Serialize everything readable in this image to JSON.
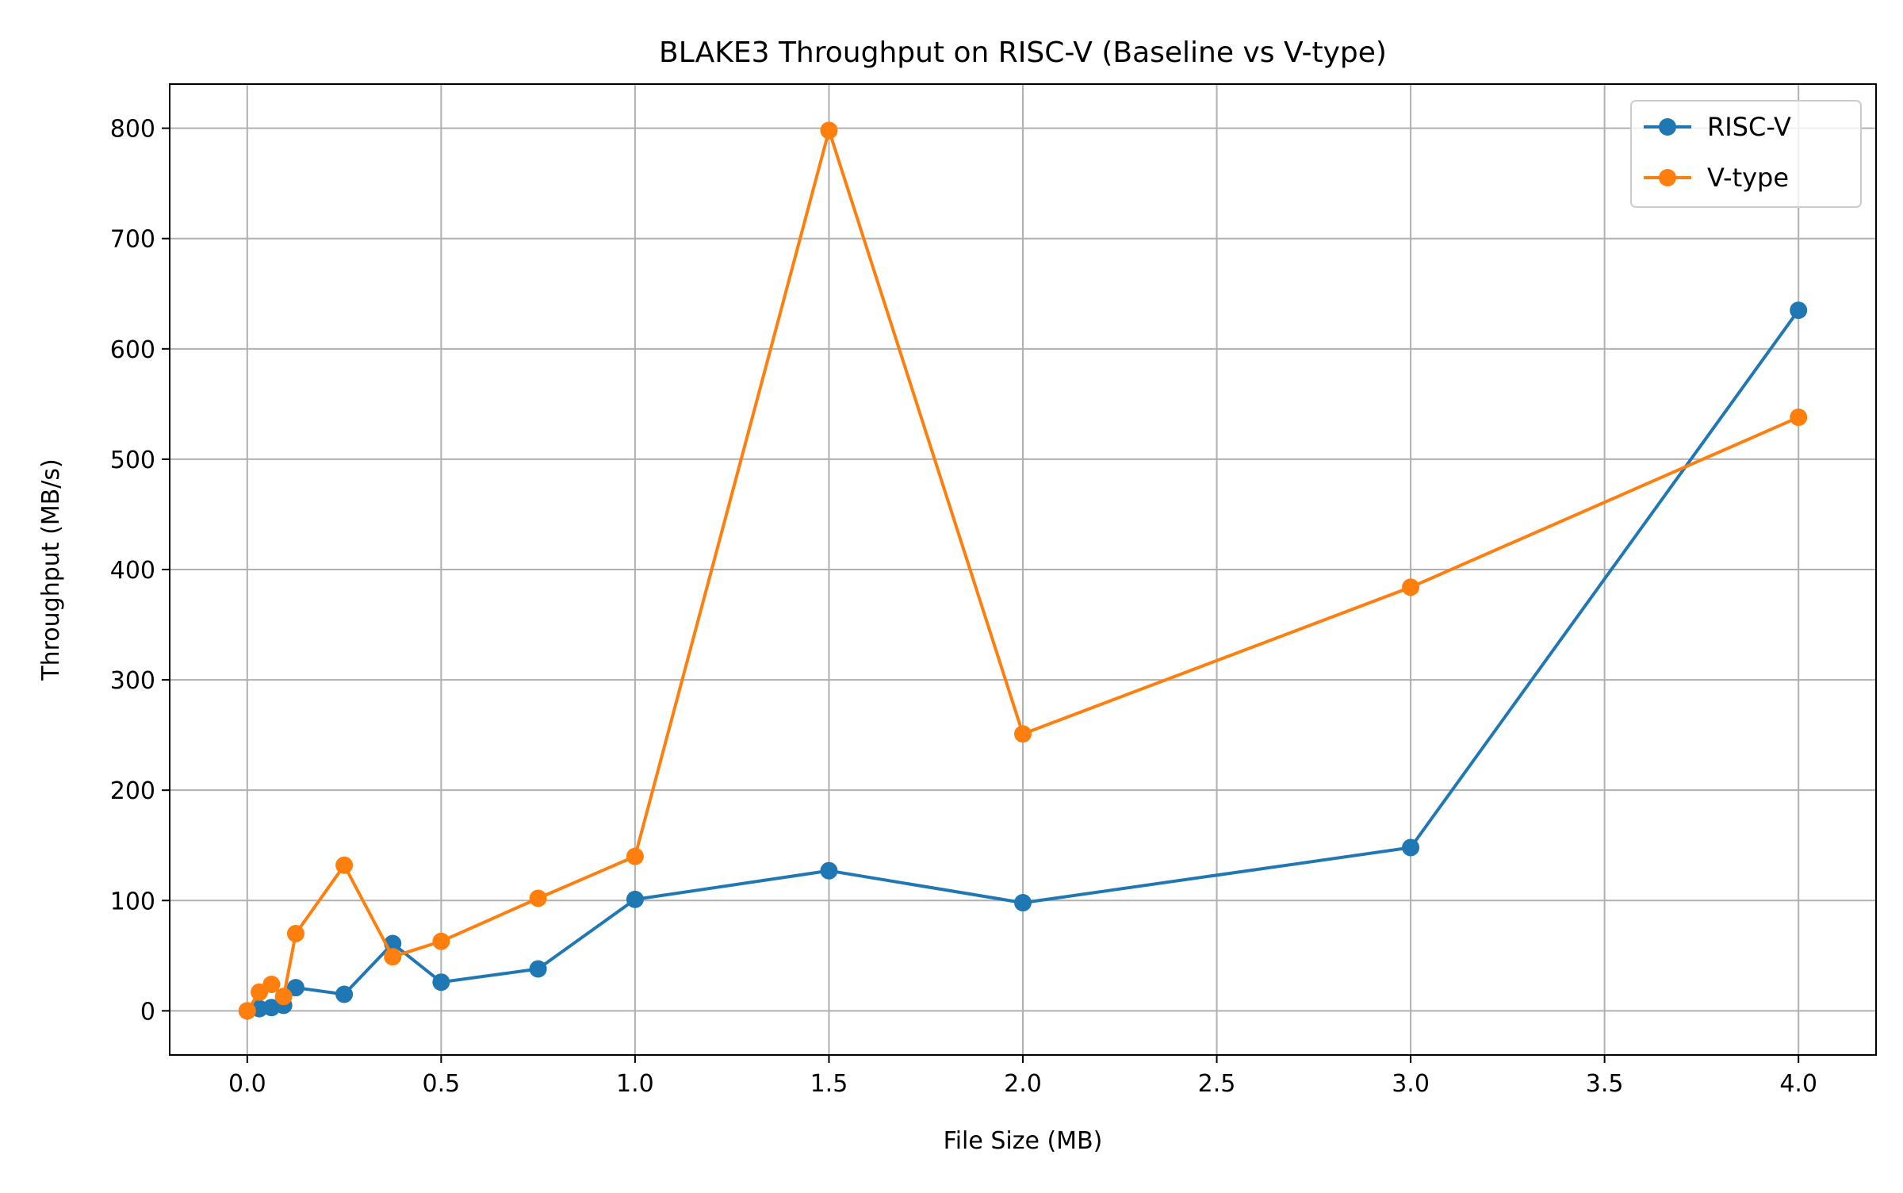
{
  "chart_data": {
    "type": "line",
    "title": "BLAKE3 Throughput on RISC-V (Baseline vs V-type)",
    "xlabel": "File Size (MB)",
    "ylabel": "Throughput (MB/s)",
    "xlim": [
      -0.2,
      4.2
    ],
    "ylim": [
      -40,
      840
    ],
    "xticks": [
      0.0,
      0.5,
      1.0,
      1.5,
      2.0,
      2.5,
      3.0,
      3.5,
      4.0
    ],
    "xtick_labels": [
      "0.0",
      "0.5",
      "1.0",
      "1.5",
      "2.0",
      "2.5",
      "3.0",
      "3.5",
      "4.0"
    ],
    "yticks": [
      0,
      100,
      200,
      300,
      400,
      500,
      600,
      700,
      800
    ],
    "ytick_labels": [
      "0",
      "100",
      "200",
      "300",
      "400",
      "500",
      "600",
      "700",
      "800"
    ],
    "grid": true,
    "legend_position": "top-right",
    "series": [
      {
        "name": "RISC-V",
        "color": "#1f77b4",
        "marker": "circle",
        "x": [
          0.0,
          0.03125,
          0.0625,
          0.09375,
          0.125,
          0.25,
          0.375,
          0.5,
          0.75,
          1.0,
          1.5,
          2.0,
          3.0,
          4.0
        ],
        "y": [
          0,
          2,
          3,
          5,
          21,
          15,
          61,
          26,
          38,
          101,
          127,
          98,
          148,
          635
        ]
      },
      {
        "name": "V-type",
        "color": "#ff7f0e",
        "marker": "circle",
        "x": [
          0.0,
          0.03125,
          0.0625,
          0.09375,
          0.125,
          0.25,
          0.375,
          0.5,
          0.75,
          1.0,
          1.5,
          2.0,
          3.0,
          4.0
        ],
        "y": [
          0,
          17,
          24,
          13,
          70,
          132,
          49,
          63,
          102,
          140,
          798,
          251,
          384,
          538
        ]
      }
    ]
  }
}
